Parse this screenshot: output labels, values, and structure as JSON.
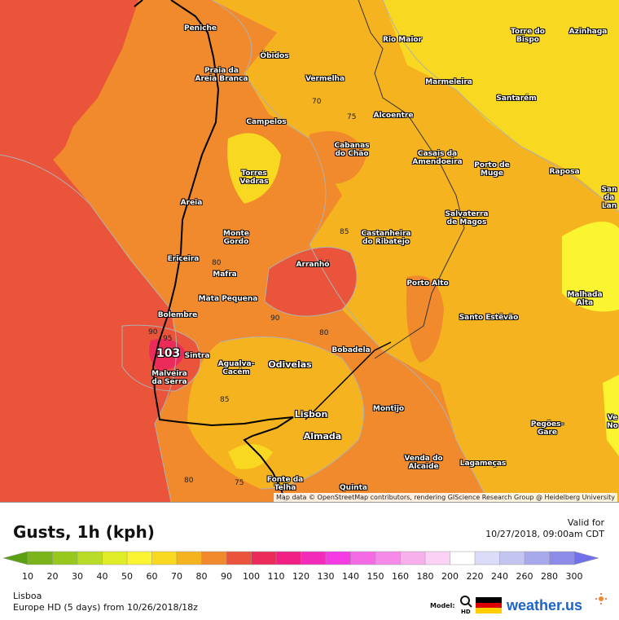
{
  "map": {
    "attribution": "Map data © OpenStreetMap contributors, rendering GIScience Research Group @ Heidelberg University",
    "max_value": "103",
    "contour_labels": [
      "70",
      "75",
      "85",
      "80",
      "90",
      "95",
      "80",
      "85",
      "80",
      "75"
    ],
    "places": [
      "Peniche",
      "Rio Maior",
      "Torre do Bispo",
      "Azinhaga",
      "Óbidos",
      "Praia da Areia Branca",
      "Vermelha",
      "Marmeleira",
      "Santarém",
      "Campelos",
      "Alcoentre",
      "Cabanas do Chão",
      "Casais da Amendoeira",
      "Porto de Muge",
      "Raposa",
      "San da Lan",
      "Torres Vedras",
      "Areia",
      "Salvaterra de Magos",
      "Monte Gordo",
      "Castanheira do Ribatejo",
      "Ericeira",
      "Mafra",
      "Arranhó",
      "Porto Alto",
      "Malhada Alta",
      "Mata Pequena",
      "Bolembre",
      "Santo Estêvão",
      "Sintra",
      "Agualva-Cacém",
      "Odivelas",
      "Bobadela",
      "Malveira da Serra",
      "Lisbon",
      "Montijo",
      "Almada",
      "Pegões-Gare",
      "Ve No",
      "Venda do Alcaide",
      "Lagameças",
      "Fonte da Telha",
      "Quinta"
    ],
    "colors": {
      "c60": "#f8d820",
      "c70": "#f5b320",
      "c80": "#f08a2c",
      "c90": "#e9543a",
      "c100": "#eb2c5a"
    }
  },
  "legend": {
    "title": "Gusts, 1h (kph)",
    "valid_label": "Valid for",
    "valid_time": "10/27/2018, 09:00am CDT",
    "ticks": [
      "10",
      "20",
      "30",
      "40",
      "50",
      "60",
      "70",
      "80",
      "90",
      "100",
      "110",
      "120",
      "130",
      "140",
      "150",
      "160",
      "180",
      "200",
      "220",
      "240",
      "260",
      "280",
      "300"
    ],
    "colors": [
      "#5aa012",
      "#7ab41a",
      "#98c81e",
      "#b8dc28",
      "#e0ec28",
      "#faf530",
      "#f8d820",
      "#f5b320",
      "#f08a2c",
      "#e9543a",
      "#eb2c5a",
      "#f01f84",
      "#f22cb8",
      "#f53ce4",
      "#f46ce4",
      "#f58ae8",
      "#f8b0ec",
      "#fbd2f5",
      "#ffffff",
      "#dcdcf8",
      "#c4c4f0",
      "#a8a8ec",
      "#8c8ce8",
      "#7070e8"
    ],
    "location": "Lisboa",
    "model_line": "Europe HD (5 days) from 10/26/2018/18z",
    "model_label": "Model:",
    "model_badge": "HD",
    "brand": "weather.us"
  }
}
